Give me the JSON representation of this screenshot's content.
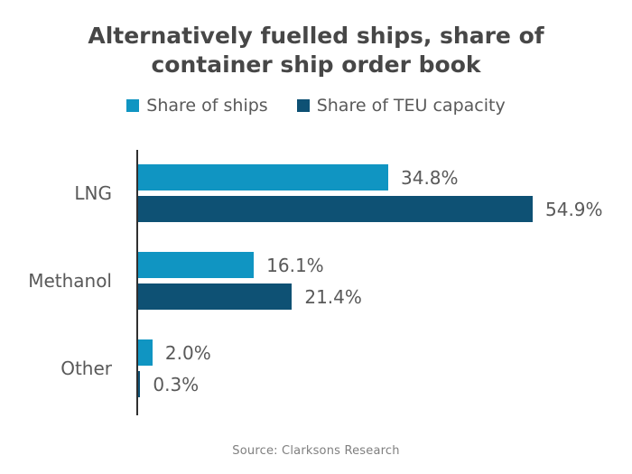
{
  "header": {
    "title_lines": [
      "Alternatively fuelled ships, share of",
      "container ship order book"
    ]
  },
  "footer": {
    "source": "Source: Clarksons Research"
  },
  "colors": {
    "share_of_ships": "#1095c2",
    "share_of_teu": "#0e5174",
    "title_text": "#474747",
    "label_text": "#595959",
    "axis_line": "#2f2f2f",
    "source_text": "#7f7f7f"
  },
  "chart_data": {
    "type": "bar",
    "orientation": "horizontal",
    "title": "Alternatively fuelled ships, share of container ship order book",
    "categories": [
      "LNG",
      "Methanol",
      "Other"
    ],
    "series": [
      {
        "name": "Share of ships",
        "color": "#1095c2",
        "values": [
          34.8,
          16.1,
          2.0
        ],
        "labels": [
          "34.8%",
          "16.1%",
          "2.0%"
        ]
      },
      {
        "name": "Share of TEU capacity",
        "color": "#0e5174",
        "values": [
          54.9,
          21.4,
          0.3
        ],
        "labels": [
          "54.9%",
          "21.4%",
          "0.3%"
        ]
      }
    ],
    "xlabel": "",
    "ylabel": "",
    "xlim": [
      0,
      60
    ],
    "grid": false,
    "legend_position": "top",
    "data_labels": true,
    "source": "Source: Clarksons Research"
  }
}
